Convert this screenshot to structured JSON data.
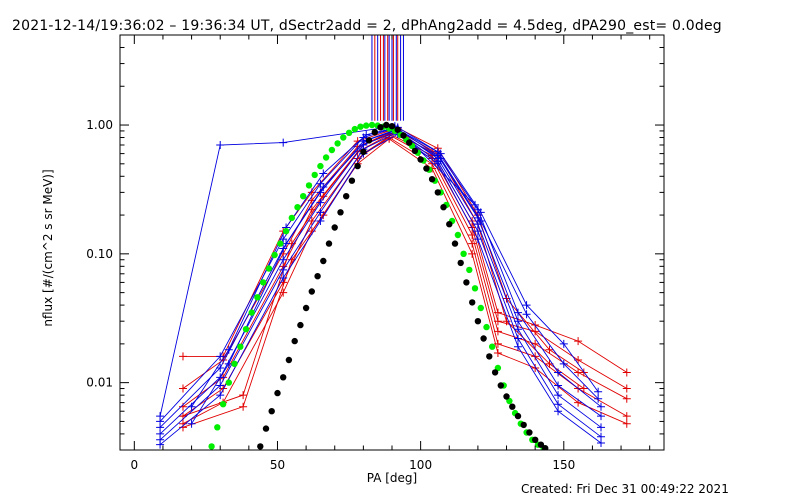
{
  "chart_data": {
    "type": "line",
    "title": "2021-12-14/19:36:02 – 19:36:34 UT, dSectr2add = 2, dPhAng2add = 4.5deg, dPA290_est=  0.0deg",
    "xlabel": "PA [deg]",
    "ylabel": "nflux [#/(cm^2 s sr MeV)]",
    "xlim": [
      -5,
      185
    ],
    "ylim": [
      0.003,
      5
    ],
    "yscale": "log",
    "xticks": [
      0,
      50,
      100,
      150
    ],
    "yticks": [
      0.01,
      0.1,
      1.0
    ],
    "ytick_labels": [
      "0.01",
      "0.10",
      "1.00"
    ],
    "colors": {
      "red": "#e00000",
      "blue": "#0000e0",
      "green": "#00ee00",
      "black": "#000000"
    },
    "vertical_markers": {
      "y_top": 5,
      "y_bottom": 1.08,
      "red_x": [
        84,
        86,
        87,
        88.5,
        90.5,
        92
      ],
      "blue_x": [
        83,
        85,
        87.5,
        89,
        90,
        91.5,
        93,
        94
      ]
    },
    "series": [
      {
        "color": "red",
        "marker": "plus",
        "x": [
          17,
          31,
          52,
          62,
          78,
          89,
          104,
          118,
          127,
          140,
          155,
          172
        ],
        "y": [
          0.016,
          0.016,
          0.15,
          0.3,
          0.75,
          0.9,
          0.62,
          0.18,
          0.035,
          0.028,
          0.021,
          0.012
        ]
      },
      {
        "color": "red",
        "marker": "plus",
        "x": [
          17,
          31,
          52,
          62,
          78,
          89,
          104,
          118,
          127,
          140,
          155,
          172
        ],
        "y": [
          0.009,
          0.015,
          0.1,
          0.26,
          0.68,
          0.86,
          0.58,
          0.16,
          0.03,
          0.025,
          0.015,
          0.009
        ]
      },
      {
        "color": "red",
        "marker": "plus",
        "x": [
          17,
          31,
          52,
          62,
          78,
          89,
          104,
          118,
          127,
          140,
          155,
          172
        ],
        "y": [
          0.0065,
          0.011,
          0.08,
          0.22,
          0.62,
          0.84,
          0.55,
          0.14,
          0.025,
          0.02,
          0.012,
          0.0075
        ]
      },
      {
        "color": "red",
        "marker": "plus",
        "x": [
          17,
          31,
          52,
          62,
          78,
          89,
          104,
          118,
          127,
          140,
          155,
          172
        ],
        "y": [
          0.0055,
          0.009,
          0.06,
          0.18,
          0.55,
          0.8,
          0.5,
          0.12,
          0.02,
          0.016,
          0.009,
          0.0055
        ]
      },
      {
        "color": "red",
        "marker": "plus",
        "x": [
          17,
          31,
          52,
          62,
          78,
          89,
          104,
          118,
          127,
          140,
          155,
          172
        ],
        "y": [
          0.0048,
          0.007,
          0.05,
          0.15,
          0.5,
          0.78,
          0.46,
          0.1,
          0.017,
          0.013,
          0.007,
          0.0048
        ]
      },
      {
        "color": "red",
        "marker": "plus",
        "x": [
          17,
          38,
          55,
          66,
          80,
          92,
          106,
          120,
          130,
          145,
          157
        ],
        "y": [
          0.0055,
          0.008,
          0.12,
          0.28,
          0.7,
          0.95,
          0.66,
          0.2,
          0.045,
          0.018,
          0.012
        ]
      },
      {
        "color": "red",
        "marker": "plus",
        "x": [
          17,
          38,
          55,
          66,
          80,
          92,
          106,
          120,
          130,
          145,
          157
        ],
        "y": [
          0.0045,
          0.0065,
          0.09,
          0.2,
          0.6,
          0.9,
          0.6,
          0.17,
          0.03,
          0.014,
          0.009
        ]
      },
      {
        "color": "blue",
        "marker": "plus",
        "x": [
          9,
          30,
          52,
          91,
          119
        ],
        "y": [
          0.0055,
          0.7,
          0.73,
          0.98,
          0.24
        ]
      },
      {
        "color": "blue",
        "marker": "plus",
        "x": [
          9,
          30,
          52,
          65,
          80,
          92,
          106,
          120,
          134,
          148,
          163
        ],
        "y": [
          0.005,
          0.016,
          0.13,
          0.35,
          0.8,
          0.96,
          0.62,
          0.22,
          0.035,
          0.012,
          0.0065
        ]
      },
      {
        "color": "blue",
        "marker": "plus",
        "x": [
          9,
          30,
          52,
          65,
          80,
          92,
          106,
          120,
          134,
          148,
          163
        ],
        "y": [
          0.0045,
          0.013,
          0.11,
          0.3,
          0.75,
          0.93,
          0.58,
          0.19,
          0.03,
          0.0095,
          0.0055
        ]
      },
      {
        "color": "blue",
        "marker": "plus",
        "x": [
          9,
          30,
          52,
          65,
          80,
          92,
          106,
          120,
          134,
          148,
          163
        ],
        "y": [
          0.004,
          0.011,
          0.09,
          0.25,
          0.7,
          0.9,
          0.55,
          0.17,
          0.026,
          0.008,
          0.0045
        ]
      },
      {
        "color": "blue",
        "marker": "plus",
        "x": [
          9,
          30,
          52,
          65,
          80,
          92,
          106,
          120,
          134,
          148,
          163
        ],
        "y": [
          0.0036,
          0.0095,
          0.075,
          0.21,
          0.65,
          0.88,
          0.52,
          0.15,
          0.022,
          0.0068,
          0.0038
        ]
      },
      {
        "color": "blue",
        "marker": "plus",
        "x": [
          9,
          30,
          52,
          65,
          80,
          92,
          106,
          120,
          134,
          148,
          163
        ],
        "y": [
          0.0033,
          0.008,
          0.065,
          0.18,
          0.6,
          0.85,
          0.5,
          0.13,
          0.019,
          0.006,
          0.0034
        ]
      },
      {
        "color": "blue",
        "marker": "plus",
        "x": [
          20,
          33,
          53,
          66,
          81,
          91,
          107,
          121,
          137,
          150,
          162
        ],
        "y": [
          0.0065,
          0.018,
          0.16,
          0.42,
          0.84,
          0.95,
          0.6,
          0.21,
          0.04,
          0.02,
          0.0085
        ]
      },
      {
        "color": "blue",
        "marker": "plus",
        "x": [
          20,
          33,
          53,
          66,
          81,
          91,
          107,
          121,
          137,
          150,
          162
        ],
        "y": [
          0.0048,
          0.014,
          0.12,
          0.33,
          0.76,
          0.9,
          0.55,
          0.18,
          0.034,
          0.014,
          0.0075
        ]
      }
    ],
    "model_curves": [
      {
        "color": "green",
        "marker": "dot",
        "x": [
          27,
          29,
          31,
          33,
          35,
          37,
          39,
          41,
          43,
          45,
          47,
          49,
          51,
          53,
          55,
          57,
          59,
          61,
          63,
          65,
          67,
          69,
          71,
          73,
          75,
          77,
          79,
          81,
          83,
          85,
          87,
          89,
          91,
          93,
          95,
          97,
          99,
          101,
          103,
          105,
          107,
          109,
          111,
          113,
          115,
          117,
          119,
          121,
          123,
          125,
          127,
          129,
          131,
          133,
          135,
          137,
          139,
          141,
          143
        ],
        "y": [
          0.0032,
          0.0045,
          0.0068,
          0.01,
          0.014,
          0.019,
          0.026,
          0.035,
          0.046,
          0.06,
          0.077,
          0.098,
          0.12,
          0.15,
          0.19,
          0.23,
          0.28,
          0.34,
          0.41,
          0.48,
          0.56,
          0.64,
          0.72,
          0.8,
          0.87,
          0.93,
          0.97,
          0.99,
          1.0,
          0.99,
          0.97,
          0.94,
          0.9,
          0.84,
          0.77,
          0.69,
          0.61,
          0.53,
          0.45,
          0.37,
          0.3,
          0.24,
          0.18,
          0.14,
          0.1,
          0.075,
          0.054,
          0.038,
          0.027,
          0.019,
          0.013,
          0.0095,
          0.0072,
          0.0058,
          0.0048,
          0.0041,
          0.0036,
          0.0033,
          0.0031
        ]
      },
      {
        "color": "black",
        "marker": "dot",
        "x": [
          44,
          46,
          48,
          50,
          52,
          54,
          56,
          58,
          60,
          62,
          64,
          66,
          68,
          70,
          72,
          74,
          76,
          78,
          80,
          82,
          84,
          86,
          88,
          90,
          92,
          94,
          96,
          98,
          100,
          102,
          104,
          106,
          108,
          110,
          112,
          114,
          116,
          118,
          120,
          122,
          124,
          126,
          128,
          130,
          132,
          134,
          136,
          138,
          140,
          142,
          143.5
        ],
        "y": [
          0.0032,
          0.0044,
          0.006,
          0.0083,
          0.011,
          0.015,
          0.021,
          0.028,
          0.038,
          0.051,
          0.067,
          0.088,
          0.12,
          0.16,
          0.21,
          0.28,
          0.37,
          0.48,
          0.62,
          0.76,
          0.88,
          0.96,
          1.0,
          0.98,
          0.92,
          0.83,
          0.73,
          0.63,
          0.54,
          0.46,
          0.38,
          0.3,
          0.23,
          0.17,
          0.12,
          0.085,
          0.06,
          0.042,
          0.03,
          0.022,
          0.016,
          0.012,
          0.0095,
          0.0078,
          0.0065,
          0.0055,
          0.0047,
          0.0041,
          0.0036,
          0.0033,
          0.0031
        ]
      }
    ]
  },
  "footer": {
    "created": "Created: Fri Dec 31 00:49:22 2021"
  }
}
